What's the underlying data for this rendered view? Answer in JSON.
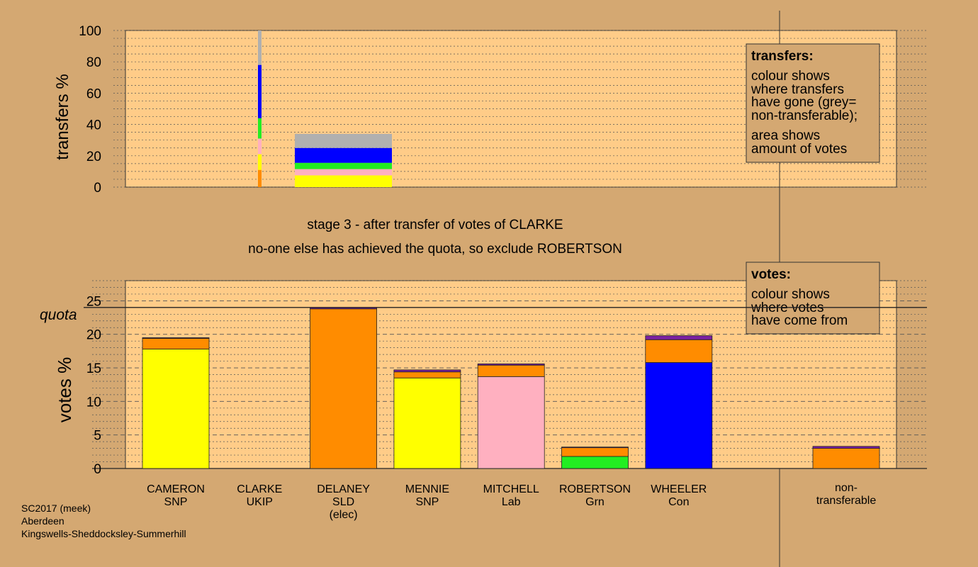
{
  "colors": {
    "background": "#d4a872",
    "panel": "#ffcc88",
    "SNP": "#ffff00",
    "UKIP": "#ff8c00",
    "SLD": "#ff8c00",
    "Lab": "#ffb0c0",
    "Grn": "#22ee22",
    "Con": "#0000ff",
    "nontransferable": "#b0b0b0",
    "purple": "#7a20a0",
    "legend_box": "#d4a872"
  },
  "top_panel": {
    "ylabel": "transfers %",
    "ticks": [
      "0",
      "20",
      "40",
      "60",
      "80",
      "100"
    ],
    "legend_title": "transfers:",
    "legend_lines": [
      "colour shows",
      "where transfers",
      "have gone (grey=",
      "non-transferable);"
    ],
    "legend_lines2": [
      "area shows",
      "amount of votes"
    ]
  },
  "captions": {
    "stage": "stage 3 - after transfer of votes of CLARKE",
    "action": "no-one else has achieved the quota, so exclude ROBERTSON"
  },
  "bottom_panel": {
    "ylabel": "votes %",
    "quota_label": "quota",
    "ticks": [
      "0",
      "5",
      "10",
      "15",
      "20",
      "25"
    ],
    "legend_title": "votes:",
    "legend_lines": [
      "colour shows",
      "where votes",
      "have come from"
    ]
  },
  "footer": {
    "line1": "SC2017 (meek)",
    "line2": "Aberdeen",
    "line3": "Kingswells-Sheddocksley-Summerhill"
  },
  "chart_data": [
    {
      "type": "bar",
      "stacked": true,
      "ylabel": "transfers %",
      "ylim": [
        0,
        100
      ],
      "thin_bar_composition": [
        {
          "colour": "UKIP",
          "from": 0,
          "to": 11
        },
        {
          "colour": "SNP",
          "from": 11,
          "to": 21
        },
        {
          "colour": "Lab",
          "from": 21,
          "to": 31
        },
        {
          "colour": "Grn",
          "from": 31,
          "to": 44
        },
        {
          "colour": "Con",
          "from": 44,
          "to": 78
        },
        {
          "colour": "nontransferable",
          "from": 78,
          "to": 100
        }
      ],
      "transfer_block_composition": [
        {
          "colour": "SNP",
          "from": 0,
          "to": 7.5
        },
        {
          "colour": "Lab",
          "from": 7.5,
          "to": 11.5
        },
        {
          "colour": "Grn",
          "from": 11.5,
          "to": 15.5
        },
        {
          "colour": "Con",
          "from": 15.5,
          "to": 25
        },
        {
          "colour": "nontransferable",
          "from": 25,
          "to": 34
        }
      ]
    },
    {
      "type": "bar",
      "stacked": true,
      "ylabel": "votes %",
      "ylim": [
        0,
        28
      ],
      "quota": 24,
      "candidates": [
        {
          "name": "CAMERON",
          "party": "SNP",
          "note": "",
          "segments": [
            {
              "colour": "SNP",
              "value": 17.8
            },
            {
              "colour": "UKIP",
              "value": 1.6
            },
            {
              "colour": "purple",
              "value": 0.1
            }
          ]
        },
        {
          "name": "CLARKE",
          "party": "UKIP",
          "note": "",
          "segments": []
        },
        {
          "name": "DELANEY",
          "party": "SLD",
          "note": "(elec)",
          "segments": [
            {
              "colour": "SLD",
              "value": 23.8
            },
            {
              "colour": "purple",
              "value": 0.2
            }
          ]
        },
        {
          "name": "MENNIE",
          "party": "SNP",
          "note": "",
          "segments": [
            {
              "colour": "SNP",
              "value": 13.5
            },
            {
              "colour": "UKIP",
              "value": 0.9
            },
            {
              "colour": "purple",
              "value": 0.3
            }
          ]
        },
        {
          "name": "MITCHELL",
          "party": "Lab",
          "note": "",
          "segments": [
            {
              "colour": "Lab",
              "value": 13.7
            },
            {
              "colour": "UKIP",
              "value": 1.7
            },
            {
              "colour": "purple",
              "value": 0.2
            }
          ]
        },
        {
          "name": "ROBERTSON",
          "party": "Grn",
          "note": "",
          "segments": [
            {
              "colour": "Grn",
              "value": 1.8
            },
            {
              "colour": "UKIP",
              "value": 1.3
            },
            {
              "colour": "purple",
              "value": 0.1
            }
          ]
        },
        {
          "name": "WHEELER",
          "party": "Con",
          "note": "",
          "segments": [
            {
              "colour": "Con",
              "value": 15.8
            },
            {
              "colour": "UKIP",
              "value": 3.4
            },
            {
              "colour": "purple",
              "value": 0.6
            }
          ]
        }
      ],
      "nontransferable": {
        "label_line1": "non-",
        "label_line2": "transferable",
        "segments": [
          {
            "colour": "UKIP",
            "value": 3.0
          },
          {
            "colour": "purple",
            "value": 0.3
          }
        ]
      }
    }
  ]
}
